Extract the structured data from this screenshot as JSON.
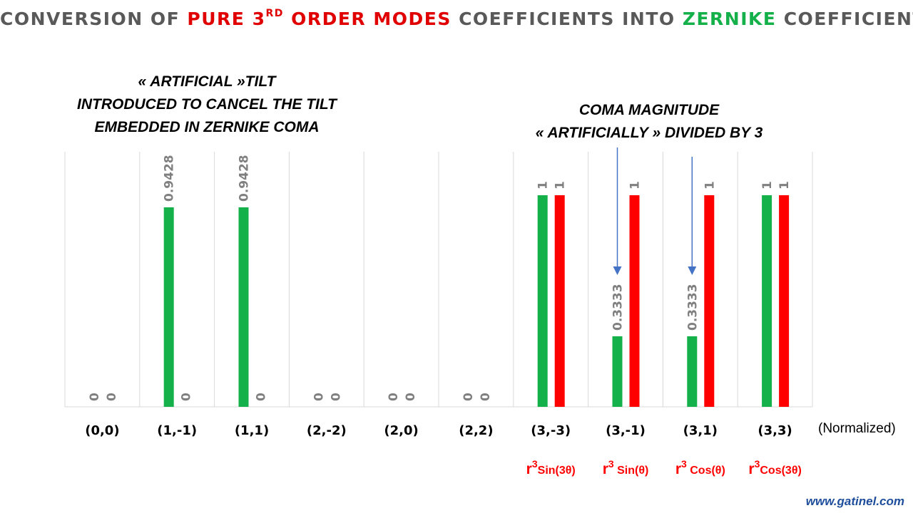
{
  "title": {
    "part1": "CONVERSION OF ",
    "part2": "PURE 3",
    "part2_sup": "RD",
    "part3": " ORDER MODES",
    "part4": " COEFFICIENTS INTO ",
    "part5": "ZERNIKE",
    "part6": " COEFFICIENTS"
  },
  "annotations": {
    "left": [
      "« ARTIFICIAL »TILT",
      "INTRODUCED TO CANCEL THE  TILT",
      "EMBEDDED IN ZERNIKE COMA"
    ],
    "right": [
      "COMA MAGNITUDE",
      "« ARTIFICIALLY » DIVIDED BY 3"
    ]
  },
  "watermark": "www.gatinel.com",
  "colors": {
    "green": "#14b04a",
    "red": "#ff0000",
    "title_gray": "#595959",
    "label_gray": "#7f7f7f",
    "formula_red": "#ff0000",
    "arrow_blue": "#4472c4"
  },
  "chart_data": {
    "type": "bar",
    "categories": [
      "(0,0)",
      "(1,-1)",
      "(1,1)",
      "(2,-2)",
      "(2,0)",
      "(2,2)",
      "(3,-3)",
      "(3,-1)",
      "(3,1)",
      "(3,3)"
    ],
    "series": [
      {
        "color": "green",
        "values": [
          0,
          0.9428,
          0.9428,
          0,
          0,
          0,
          1,
          0.3333,
          0.3333,
          1
        ],
        "labels": [
          "0",
          "0.9428",
          "0.9428",
          "0",
          "0",
          "0",
          "1",
          "0.3333",
          "0.3333",
          "1"
        ]
      },
      {
        "color": "red",
        "values": [
          0,
          0,
          0,
          0,
          0,
          0,
          1,
          1,
          1,
          1
        ],
        "labels": [
          "0",
          "0",
          "0",
          "0",
          "0",
          "0",
          "1",
          "1",
          "1",
          "1"
        ]
      }
    ],
    "ylim": [
      0,
      1.1
    ],
    "grid": "vertical",
    "axis_note": "(Normalized)",
    "formulas": [
      {
        "category": "(3,-3)",
        "base": "r",
        "exp": "3",
        "func": "Sin(3θ)"
      },
      {
        "category": "(3,-1)",
        "base": "r",
        "exp": "3",
        "func": " Sin(θ)"
      },
      {
        "category": "(3,1)",
        "base": "r",
        "exp": "3",
        "func": " Cos(θ)"
      },
      {
        "category": "(3,3)",
        "base": "r",
        "exp": "3",
        "func": "Cos(3θ)"
      }
    ],
    "arrows": [
      "(3,-1)",
      "(3,1)"
    ]
  }
}
